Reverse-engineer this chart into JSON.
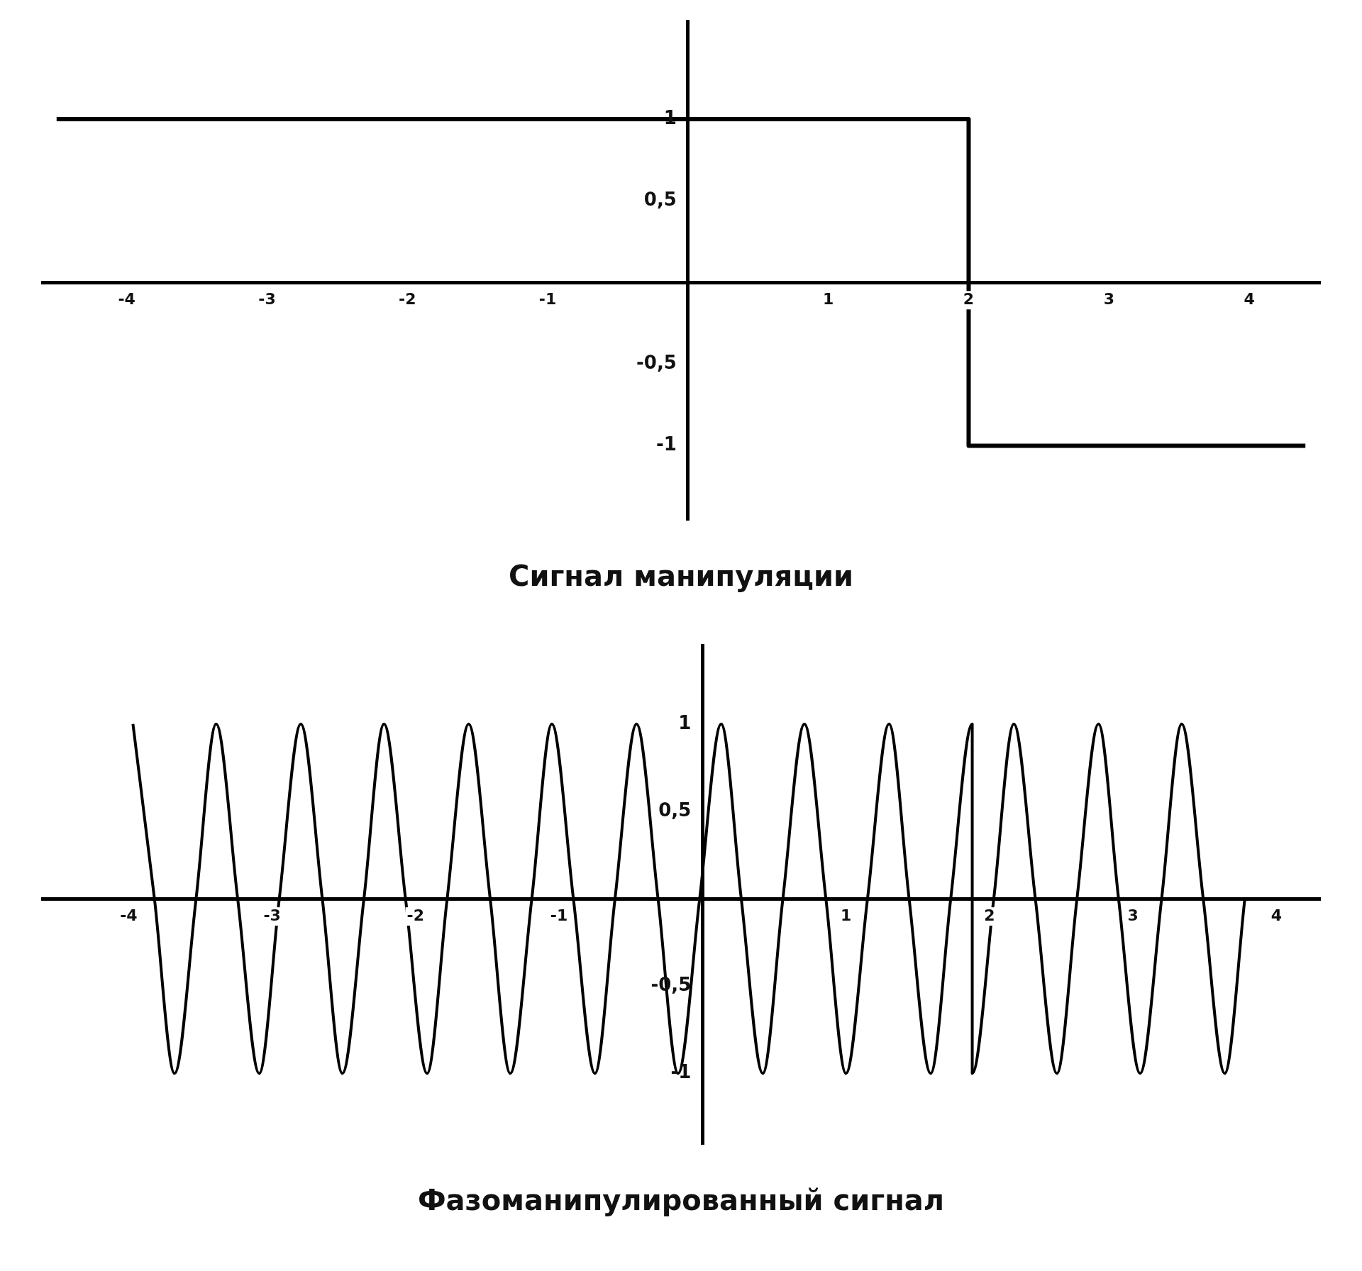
{
  "chart_data": [
    {
      "type": "line",
      "title": "Сигнал манипуляции",
      "marker": "none",
      "xlim": [
        -4.6,
        4.5
      ],
      "ylim": [
        -1.45,
        1.6
      ],
      "xticks": [
        -4,
        -3,
        -2,
        -1,
        1,
        2,
        3,
        4
      ],
      "yticks": [
        {
          "value": 1,
          "label": "1"
        },
        {
          "value": 0.5,
          "label": "0,5"
        },
        {
          "value": -0.5,
          "label": "-0,5"
        },
        {
          "value": -1,
          "label": "-1"
        }
      ],
      "series": [
        {
          "color": "#000000",
          "x": [
            -4.5,
            2,
            2,
            4.4
          ],
          "values": [
            1,
            1,
            -1,
            -1
          ]
        }
      ]
    },
    {
      "type": "line",
      "title": "Фазоманипулированный сигнал",
      "marker": "none",
      "xlim": [
        -4.6,
        4.3
      ],
      "ylim": [
        -1.4,
        1.45
      ],
      "xticks": [
        -4,
        -3,
        -2,
        -1,
        1,
        2,
        3,
        4
      ],
      "yticks": [
        {
          "value": 1,
          "label": "1"
        },
        {
          "value": 0.5,
          "label": "0,5"
        },
        {
          "value": -0.5,
          "label": "-0,5"
        },
        {
          "value": -1,
          "label": "-1"
        }
      ],
      "series": [
        {
          "color": "#000000",
          "x": [
            -3.97,
            -3.82,
            -3.68,
            -3.53,
            -3.39,
            -3.24,
            -3.09,
            -2.95,
            -2.8,
            -2.65,
            -2.51,
            -2.36,
            -2.22,
            -2.07,
            -1.92,
            -1.78,
            -1.63,
            -1.48,
            -1.34,
            -1.19,
            -1.05,
            -0.9,
            -0.75,
            -0.61,
            -0.46,
            -0.31,
            -0.17,
            -0.02,
            0.13,
            0.27,
            0.42,
            0.56,
            0.71,
            0.86,
            1,
            1.15,
            1.3,
            1.44,
            1.59,
            1.73,
            1.88,
            1.88,
            2.03,
            2.17,
            2.32,
            2.47,
            2.61,
            2.76,
            2.9,
            3.05,
            3.2,
            3.34,
            3.49,
            3.64,
            3.78
          ],
          "values": [
            1,
            0,
            -1,
            0,
            1,
            0,
            -1,
            0,
            1,
            0,
            -1,
            0,
            1,
            0,
            -1,
            0,
            1,
            0,
            -1,
            0,
            1,
            0,
            -1,
            0,
            1,
            0,
            -1,
            0,
            1,
            0,
            -1,
            0,
            1,
            0,
            -1,
            0,
            1,
            0,
            -1,
            0,
            1,
            -1,
            0,
            1,
            0,
            -1,
            0,
            1,
            0,
            -1,
            0,
            1,
            0,
            -1,
            0
          ]
        }
      ]
    }
  ]
}
